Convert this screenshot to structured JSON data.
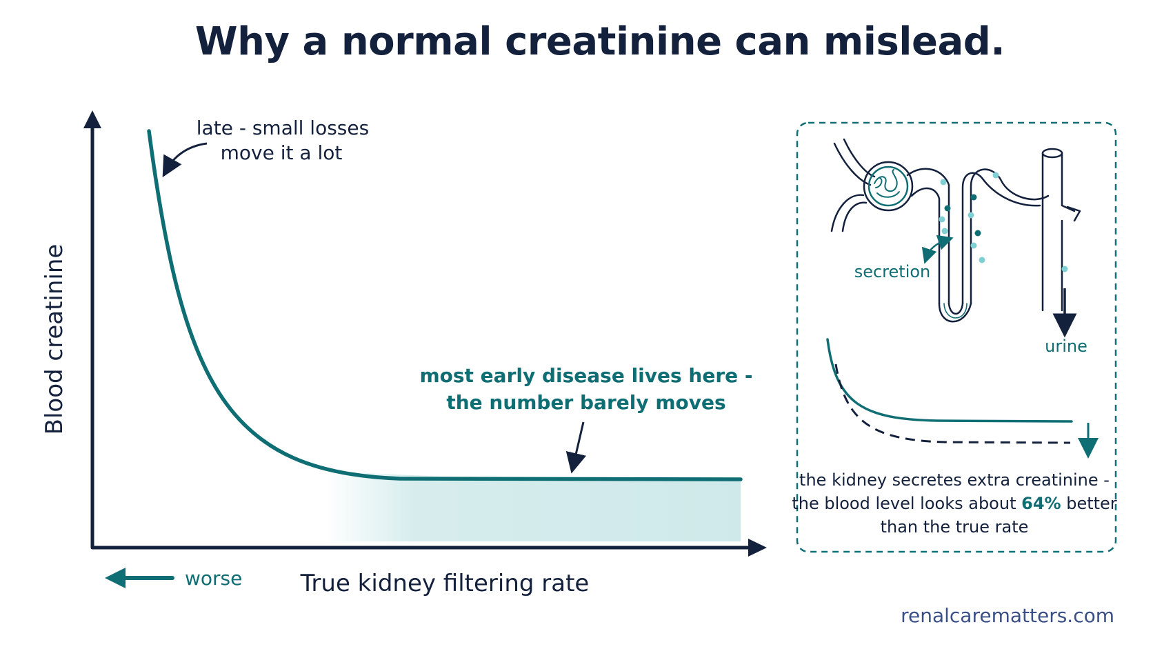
{
  "title": "Why a normal creatinine can mislead.",
  "main_chart": {
    "y_axis_label": "Blood creatinine",
    "x_axis_label": "True kidney filtering rate",
    "direction_label": "worse",
    "annotation_late_line1": "late - small losses",
    "annotation_late_line2": "move it a lot",
    "annotation_early_line1": "most early disease lives here -",
    "annotation_early_line2": "the number barely moves"
  },
  "inset": {
    "secretion_label": "secretion",
    "urine_label": "urine",
    "caption_line1": "the kidney secretes extra creatinine -",
    "caption_line2_pre": "the blood level looks about ",
    "caption_line2_highlight": "64%",
    "caption_line2_post": " better",
    "caption_line3": "than the true rate"
  },
  "footer_url": "renalcarematters.com",
  "colors": {
    "navy": "#14213d",
    "teal": "#0f6e73",
    "light_teal": "#cfe9ea",
    "dot_teal": "#7fcfd3",
    "url_blue": "#3a4f86"
  }
}
